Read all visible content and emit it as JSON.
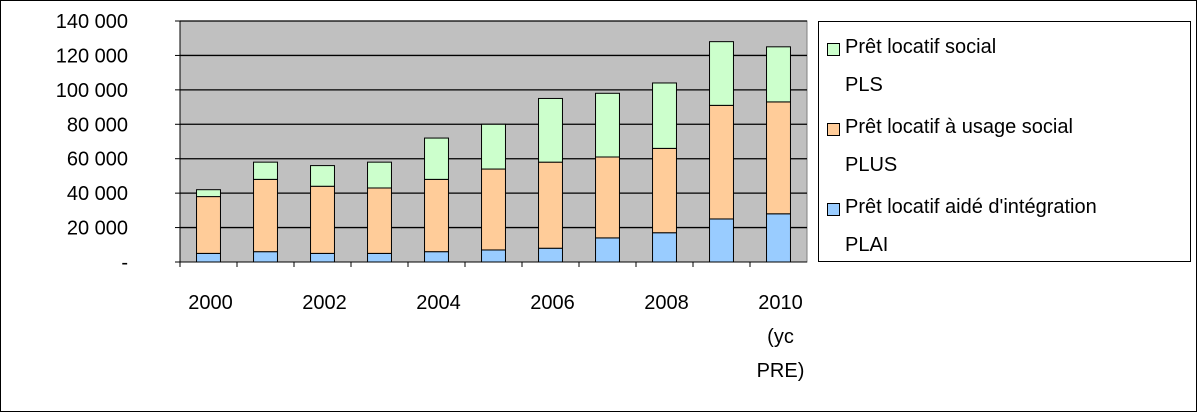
{
  "chart_data": {
    "type": "bar",
    "stacked": true,
    "categories": [
      "2000",
      "2001",
      "2002",
      "2003",
      "2004",
      "2005",
      "2006",
      "2007",
      "2008",
      "2009",
      "2010\n(yc\nPRE)"
    ],
    "x_tick_labels_shown": [
      "2000",
      "2002",
      "2004",
      "2006",
      "2008",
      "2010\n(yc\nPRE)"
    ],
    "series": [
      {
        "name": "Prêt locatif aidé d'intégration\nPLAI",
        "color": "#99ccff",
        "values": [
          5000,
          6000,
          5000,
          5000,
          6000,
          7000,
          8000,
          14000,
          17000,
          25000,
          28000
        ]
      },
      {
        "name": "Prêt locatif à usage social\nPLUS",
        "color": "#ffcc99",
        "values": [
          33000,
          42000,
          39000,
          38000,
          42000,
          47000,
          50000,
          47000,
          49000,
          66000,
          65000
        ]
      },
      {
        "name": "Prêt locatif social\nPLS",
        "color": "#ccffcc",
        "values": [
          4000,
          10000,
          12000,
          15000,
          24000,
          26000,
          37000,
          37000,
          38000,
          37000,
          32000
        ]
      }
    ],
    "y_tick_labels": [
      "-",
      "20 000",
      "40 000",
      "60 000",
      "80 000",
      "100 000",
      "120 000",
      "140 000"
    ],
    "ylim": [
      0,
      140000
    ],
    "grid": "horizontal",
    "plot_background": "#c0c0c0",
    "legend_position": "right",
    "legend_order": [
      "Prêt locatif social\nPLS",
      "Prêt locatif à usage social\nPLUS",
      "Prêt locatif aidé d'intégration\nPLAI"
    ]
  }
}
